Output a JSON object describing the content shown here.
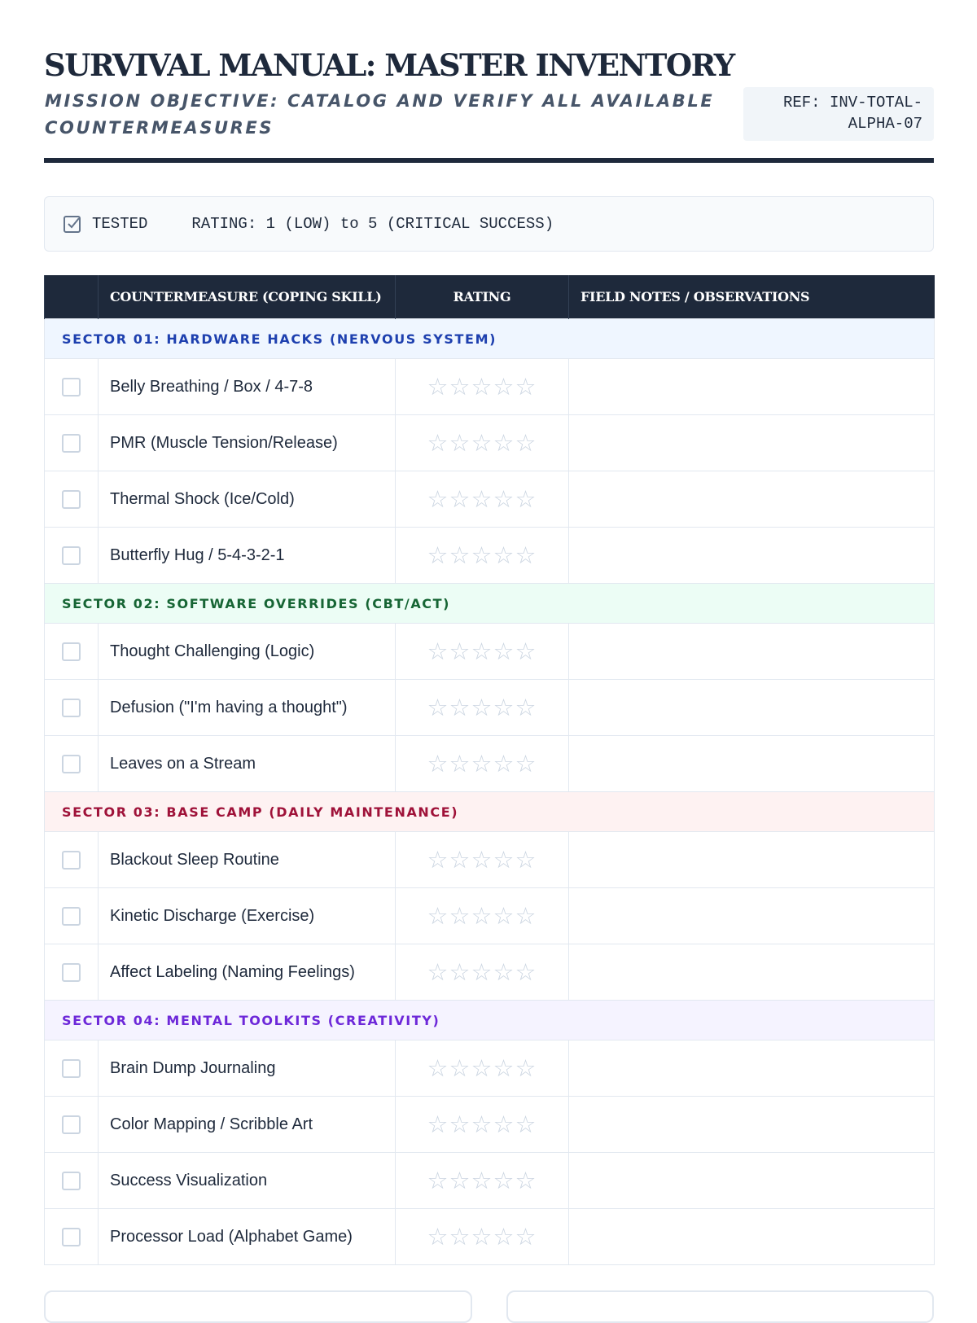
{
  "header": {
    "title": "SURVIVAL MANUAL: MASTER INVENTORY",
    "subtitle": "MISSION OBJECTIVE: CATALOG AND VERIFY ALL AVAILABLE COUNTERMEASURES",
    "ref_line1": "REF: INV-TOTAL-",
    "ref_line2": "ALPHA-07"
  },
  "legend": {
    "icon": "checkbox-checked-icon",
    "tested_label": "TESTED",
    "rating_label": "RATING: 1 (LOW) to 5 (CRITICAL SUCCESS)"
  },
  "table": {
    "columns": [
      "",
      "COUNTERMEASURE (COPING SKILL)",
      "RATING",
      "FIELD NOTES / OBSERVATIONS"
    ],
    "max_rating": 5,
    "sectors": [
      {
        "label": "SECTOR 01: HARDWARE HACKS (NERVOUS SYSTEM)",
        "color": "#1e40af",
        "bg": "#eff6ff",
        "items": [
          "Belly Breathing / Box / 4-7-8",
          "PMR (Muscle Tension/Release)",
          "Thermal Shock (Ice/Cold)",
          "Butterfly Hug / 5-4-3-2-1"
        ]
      },
      {
        "label": "SECTOR 02: SOFTWARE OVERRIDES (CBT/ACT)",
        "color": "#166534",
        "bg": "#ecfdf5",
        "items": [
          "Thought Challenging (Logic)",
          "Defusion (\"I'm having a thought\")",
          "Leaves on a Stream"
        ]
      },
      {
        "label": "SECTOR 03: BASE CAMP (DAILY MAINTENANCE)",
        "color": "#9f1239",
        "bg": "#fef2f2",
        "items": [
          "Blackout Sleep Routine",
          "Kinetic Discharge (Exercise)",
          "Affect Labeling (Naming Feelings)"
        ]
      },
      {
        "label": "SECTOR 04: MENTAL TOOLKITS (CREATIVITY)",
        "color": "#6d28d9",
        "bg": "#f5f3ff",
        "items": [
          "Brain Dump Journaling",
          "Color Mapping / Scribble Art",
          "Success Visualization",
          "Processor Load (Alphabet Game)"
        ]
      }
    ]
  }
}
